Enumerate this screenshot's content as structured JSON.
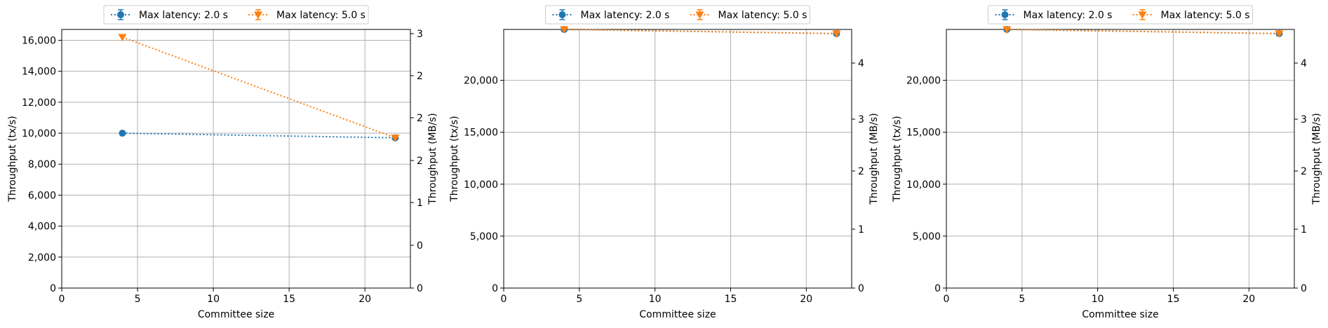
{
  "chart_data": [
    {
      "type": "line",
      "xlabel": "Committee size",
      "ylabel": "Throughput (tx/s)",
      "ylabel_right": "Throughput (MB/s)",
      "xlim": [
        0,
        23
      ],
      "ylim": [
        0,
        16700
      ],
      "x_ticks": [
        "0",
        "5",
        "10",
        "15",
        "20"
      ],
      "y_ticks": [
        "0",
        "2,000",
        "4,000",
        "6,000",
        "8,000",
        "10,000",
        "12,000",
        "14,000",
        "16,000"
      ],
      "y2_ticks": [
        "0",
        "0",
        "1",
        "2",
        "2",
        "2",
        "3"
      ],
      "grid": true,
      "legend_position": "top-center",
      "series": [
        {
          "name": "Max latency: 2.0 s",
          "color": "#1f77b4",
          "marker": "circle",
          "x": [
            4,
            22
          ],
          "y": [
            10000,
            9700
          ]
        },
        {
          "name": "Max latency: 5.0 s",
          "color": "#ff7f0e",
          "marker": "triangle-down",
          "x": [
            4,
            22
          ],
          "y": [
            16200,
            9700
          ]
        }
      ]
    },
    {
      "type": "line",
      "xlabel": "Committee size",
      "ylabel": "Throughput (tx/s)",
      "ylabel_right": "Throughput (MB/s)",
      "xlim": [
        0,
        23
      ],
      "ylim": [
        0,
        24900
      ],
      "x_ticks": [
        "0",
        "5",
        "10",
        "15",
        "20"
      ],
      "y_ticks": [
        "0",
        "5,000",
        "10,000",
        "15,000",
        "20,000"
      ],
      "y2_ticks": [
        "0",
        "1",
        "2",
        "3",
        "4"
      ],
      "grid": true,
      "legend_position": "top-center",
      "series": [
        {
          "name": "Max latency: 2.0 s",
          "color": "#1f77b4",
          "marker": "circle",
          "x": [
            4,
            22
          ],
          "y": [
            24900,
            24500
          ]
        },
        {
          "name": "Max latency: 5.0 s",
          "color": "#ff7f0e",
          "marker": "triangle-down",
          "x": [
            4,
            22
          ],
          "y": [
            24900,
            24500
          ]
        }
      ]
    },
    {
      "type": "line",
      "xlabel": "Committee size",
      "ylabel": "Throughput (tx/s)",
      "ylabel_right": "Throughput (MB/s)",
      "xlim": [
        0,
        23
      ],
      "ylim": [
        0,
        24900
      ],
      "x_ticks": [
        "0",
        "5",
        "10",
        "15",
        "20"
      ],
      "y_ticks": [
        "0",
        "5,000",
        "10,000",
        "15,000",
        "20,000"
      ],
      "y2_ticks": [
        "0",
        "1",
        "2",
        "3",
        "4"
      ],
      "grid": true,
      "legend_position": "top-center",
      "series": [
        {
          "name": "Max latency: 2.0 s",
          "color": "#1f77b4",
          "marker": "circle",
          "x": [
            4,
            22
          ],
          "y": [
            24900,
            24500
          ]
        },
        {
          "name": "Max latency: 5.0 s",
          "color": "#ff7f0e",
          "marker": "triangle-down",
          "x": [
            4,
            22
          ],
          "y": [
            24900,
            24500
          ]
        }
      ]
    }
  ]
}
